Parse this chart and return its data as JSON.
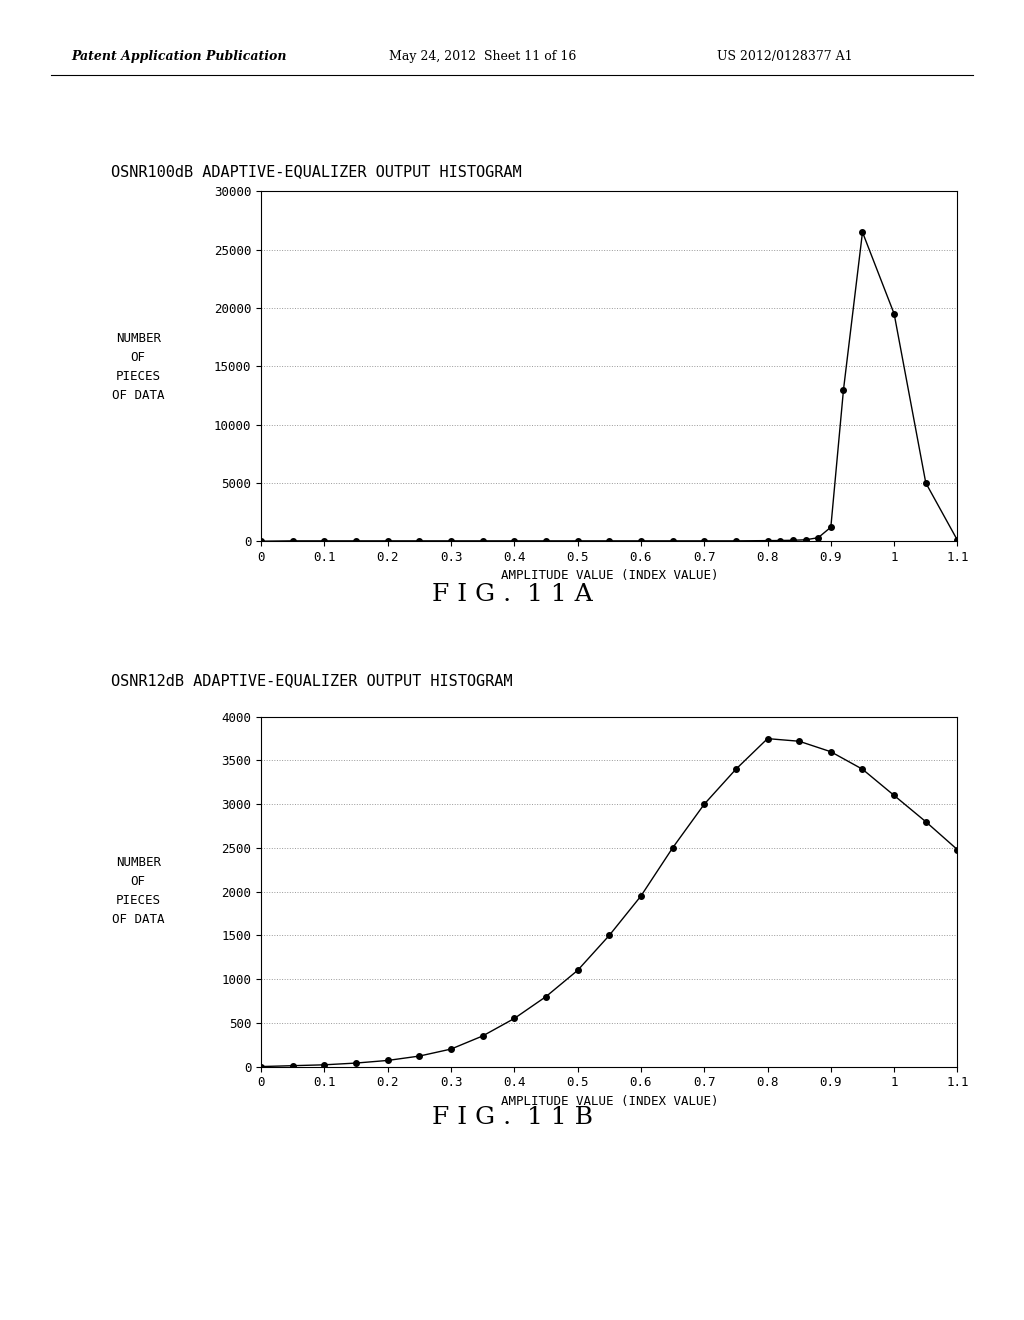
{
  "header_left": "Patent Application Publication",
  "header_center": "May 24, 2012  Sheet 11 of 16",
  "header_right": "US 2012/0128377 A1",
  "fig11a": {
    "title": "OSNR100dB ADAPTIVE-EQUALIZER OUTPUT HISTOGRAM",
    "xlabel": "AMPLITUDE VALUE (INDEX VALUE)",
    "ylabel_lines": [
      "NUMBER",
      "OF",
      "PIECES",
      "OF DATA"
    ],
    "x": [
      0,
      0.05,
      0.1,
      0.15,
      0.2,
      0.25,
      0.3,
      0.35,
      0.4,
      0.45,
      0.5,
      0.55,
      0.6,
      0.65,
      0.7,
      0.75,
      0.8,
      0.82,
      0.84,
      0.86,
      0.88,
      0.9,
      0.92,
      0.95,
      1.0,
      1.05,
      1.1
    ],
    "y": [
      0,
      30,
      30,
      30,
      30,
      30,
      30,
      30,
      30,
      30,
      30,
      30,
      30,
      30,
      30,
      30,
      50,
      60,
      80,
      120,
      300,
      1200,
      13000,
      26500,
      19500,
      5000,
      80
    ],
    "xticks": [
      0,
      0.1,
      0.2,
      0.3,
      0.4,
      0.5,
      0.6,
      0.7,
      0.8,
      0.9,
      1.0,
      1.1
    ],
    "xlabels": [
      "0",
      "0.1",
      "0.2",
      "0.3",
      "0.4",
      "0.5",
      "0.6",
      "0.7",
      "0.8",
      "0.9",
      "1",
      "1.1"
    ],
    "ylim": [
      0,
      30000
    ],
    "yticks": [
      0,
      5000,
      10000,
      15000,
      20000,
      25000,
      30000
    ],
    "xlim": [
      0,
      1.1
    ],
    "fig_label": "F I G .  1 1 A"
  },
  "fig11b": {
    "title": "OSNR12dB ADAPTIVE-EQUALIZER OUTPUT HISTOGRAM",
    "xlabel": "AMPLITUDE VALUE (INDEX VALUE)",
    "ylabel_lines": [
      "NUMBER",
      "OF",
      "PIECES",
      "OF DATA"
    ],
    "x": [
      0,
      0.05,
      0.1,
      0.15,
      0.2,
      0.25,
      0.3,
      0.35,
      0.4,
      0.45,
      0.5,
      0.55,
      0.6,
      0.65,
      0.7,
      0.75,
      0.8,
      0.85,
      0.9,
      0.95,
      1.0,
      1.05,
      1.1
    ],
    "y": [
      0,
      10,
      20,
      40,
      70,
      120,
      200,
      350,
      550,
      800,
      1100,
      1500,
      1950,
      2500,
      3000,
      3400,
      3750,
      3720,
      3600,
      3400,
      3100,
      2800,
      2480
    ],
    "xticks": [
      0,
      0.1,
      0.2,
      0.3,
      0.4,
      0.5,
      0.6,
      0.7,
      0.8,
      0.9,
      1.0,
      1.1
    ],
    "xlabels": [
      "0",
      "0.1",
      "0.2",
      "0.3",
      "0.4",
      "0.5",
      "0.6",
      "0.7",
      "0.8",
      "0.9",
      "1",
      "1.1"
    ],
    "ylim": [
      0,
      4000
    ],
    "yticks": [
      0,
      500,
      1000,
      1500,
      2000,
      2500,
      3000,
      3500,
      4000
    ],
    "xlim": [
      0,
      1.1
    ],
    "fig_label": "F I G .  1 1 B"
  },
  "line_color": "#000000",
  "marker": "o",
  "markersize": 4,
  "bg_color": "#ffffff",
  "grid_color": "#999999",
  "grid_style": ":",
  "grid_linewidth": 0.7,
  "title_fontsize": 11,
  "axis_label_fontsize": 9,
  "tick_fontsize": 9,
  "fig_label_fontsize": 18,
  "ylabel_fontsize": 9
}
